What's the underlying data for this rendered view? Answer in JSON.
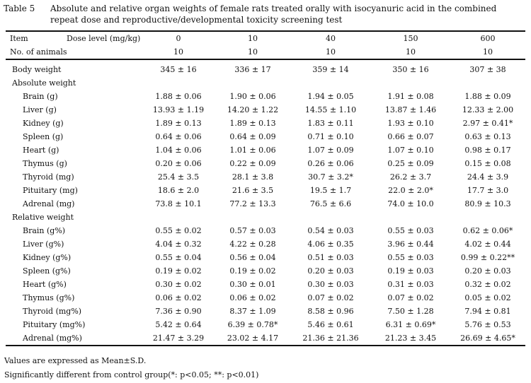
{
  "title": {
    "number": "Table 5",
    "text": "Absolute and relative organ weights of female rats treated orally with isocyanuric acid in the combined repeat dose and reproductive/developmental toxicity screening test"
  },
  "header": {
    "item_label": "Item",
    "dose_label": "Dose level (mg/kg)",
    "doses": [
      "0",
      "10",
      "40",
      "150",
      "600"
    ],
    "animals_label": "No. of animals",
    "animals": [
      "10",
      "10",
      "10",
      "10",
      "10"
    ]
  },
  "rows": [
    {
      "label": "Body weight",
      "type": "section",
      "values": [
        "345 ± 16",
        "336 ± 17",
        "359 ± 14",
        "350 ± 16",
        "307 ± 38"
      ]
    },
    {
      "label": "Absolute weight",
      "type": "section",
      "values": []
    },
    {
      "label": "Brain (g)",
      "type": "sub",
      "values": [
        "1.88 ± 0.06",
        "1.90 ± 0.06",
        "1.94 ± 0.05",
        "1.91 ± 0.08",
        "1.88 ± 0.09"
      ]
    },
    {
      "label": "Liver (g)",
      "type": "sub",
      "values": [
        "13.93 ± 1.19",
        "14.20 ± 1.22",
        "14.55 ± 1.10",
        "13.87 ± 1.46",
        "12.33 ± 2.00"
      ]
    },
    {
      "label": "Kidney (g)",
      "type": "sub",
      "values": [
        "1.89 ± 0.13",
        "1.89 ± 0.13",
        "1.83 ± 0.11",
        "1.93 ± 0.10",
        "2.97 ± 0.41*"
      ]
    },
    {
      "label": "Spleen (g)",
      "type": "sub",
      "values": [
        "0.64 ± 0.06",
        "0.64 ± 0.09",
        "0.71 ± 0.10",
        "0.66 ± 0.07",
        "0.63 ± 0.13"
      ]
    },
    {
      "label": "Heart (g)",
      "type": "sub",
      "values": [
        "1.04 ± 0.06",
        "1.01 ± 0.06",
        "1.07 ± 0.09",
        "1.07 ± 0.10",
        "0.98 ± 0.17"
      ]
    },
    {
      "label": "Thymus (g)",
      "type": "sub",
      "values": [
        "0.20 ± 0.06",
        "0.22 ± 0.09",
        "0.26 ± 0.06",
        "0.25 ± 0.09",
        "0.15 ± 0.08"
      ]
    },
    {
      "label": "Thyroid (mg)",
      "type": "sub",
      "values": [
        "25.4 ± 3.5",
        "28.1 ± 3.8",
        "30.7 ± 3.2*",
        "26.2 ± 3.7",
        "24.4 ± 3.9"
      ]
    },
    {
      "label": "Pituitary (mg)",
      "type": "sub",
      "values": [
        "18.6 ± 2.0",
        "21.6 ± 3.5",
        "19.5 ± 1.7",
        "22.0 ± 2.0*",
        "17.7 ± 3.0"
      ]
    },
    {
      "label": "Adrenal (mg)",
      "type": "sub",
      "values": [
        "73.8 ± 10.1",
        "77.2 ± 13.3",
        "76.5 ± 6.6",
        "74.0 ± 10.0",
        "80.9 ± 10.3"
      ]
    },
    {
      "label": "Relative weight",
      "type": "section",
      "values": []
    },
    {
      "label": "Brain (g%)",
      "type": "sub",
      "values": [
        "0.55 ± 0.02",
        "0.57 ± 0.03",
        "0.54 ± 0.03",
        "0.55 ± 0.03",
        "0.62 ± 0.06*"
      ]
    },
    {
      "label": "Liver (g%)",
      "type": "sub",
      "values": [
        "4.04 ± 0.32",
        "4.22 ± 0.28",
        "4.06 ± 0.35",
        "3.96 ± 0.44",
        "4.02 ± 0.44"
      ]
    },
    {
      "label": "Kidney (g%)",
      "type": "sub",
      "values": [
        "0.55 ± 0.04",
        "0.56 ± 0.04",
        "0.51 ± 0.03",
        "0.55 ± 0.03",
        "0.99 ± 0.22**"
      ]
    },
    {
      "label": "Spleen (g%)",
      "type": "sub",
      "values": [
        "0.19 ± 0.02",
        "0.19 ± 0.02",
        "0.20 ± 0.03",
        "0.19 ± 0.03",
        "0.20 ± 0.03"
      ]
    },
    {
      "label": "Heart (g%)",
      "type": "sub",
      "values": [
        "0.30 ± 0.02",
        "0.30 ± 0.01",
        "0.30 ± 0.03",
        "0.31 ± 0.03",
        "0.32 ± 0.02"
      ]
    },
    {
      "label": "Thymus (g%)",
      "type": "sub",
      "values": [
        "0.06 ± 0.02",
        "0.06 ± 0.02",
        "0.07 ± 0.02",
        "0.07 ± 0.02",
        "0.05 ± 0.02"
      ]
    },
    {
      "label": "Thyroid (mg%)",
      "type": "sub",
      "values": [
        "7.36 ± 0.90",
        "8.37 ± 1.09",
        "8.58 ± 0.96",
        "7.50 ± 1.28",
        "7.94 ± 0.81"
      ]
    },
    {
      "label": "Pituitary (mg%)",
      "type": "sub",
      "values": [
        "5.42 ± 0.64",
        "6.39 ± 0.78*",
        "5.46 ± 0.61",
        "6.31 ± 0.69*",
        "5.76 ± 0.53"
      ]
    },
    {
      "label": "Adrenal (mg%)",
      "type": "sub",
      "values": [
        "21.47 ± 3.29",
        "23.02 ± 4.17",
        "21.36 ± 21.36",
        "21.23 ± 3.45",
        "26.69 ± 4.65*"
      ]
    }
  ],
  "footnotes": [
    "Values are expressed as Mean±S.D.",
    "Significantly different from control group(*: p<0.05;  **: p<0.01)"
  ]
}
